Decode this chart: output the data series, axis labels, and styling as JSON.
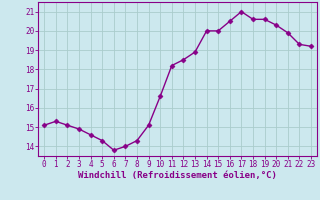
{
  "x": [
    0,
    1,
    2,
    3,
    4,
    5,
    6,
    7,
    8,
    9,
    10,
    11,
    12,
    13,
    14,
    15,
    16,
    17,
    18,
    19,
    20,
    21,
    22,
    23
  ],
  "y": [
    15.1,
    15.3,
    15.1,
    14.9,
    14.6,
    14.3,
    13.8,
    14.0,
    14.3,
    15.1,
    16.6,
    18.2,
    18.5,
    18.9,
    20.0,
    20.0,
    20.5,
    21.0,
    20.6,
    20.6,
    20.3,
    19.9,
    19.3,
    19.2
  ],
  "line_color": "#880088",
  "marker": "D",
  "marker_size": 2.5,
  "linewidth": 1.0,
  "bg_color": "#cce8ee",
  "grid_color": "#aacccc",
  "xlabel": "Windchill (Refroidissement éolien,°C)",
  "xlabel_fontsize": 6.5,
  "tick_fontsize": 5.5,
  "ylim": [
    13.5,
    21.5
  ],
  "yticks": [
    14,
    15,
    16,
    17,
    18,
    19,
    20,
    21
  ],
  "xticks": [
    0,
    1,
    2,
    3,
    4,
    5,
    6,
    7,
    8,
    9,
    10,
    11,
    12,
    13,
    14,
    15,
    16,
    17,
    18,
    19,
    20,
    21,
    22,
    23
  ]
}
